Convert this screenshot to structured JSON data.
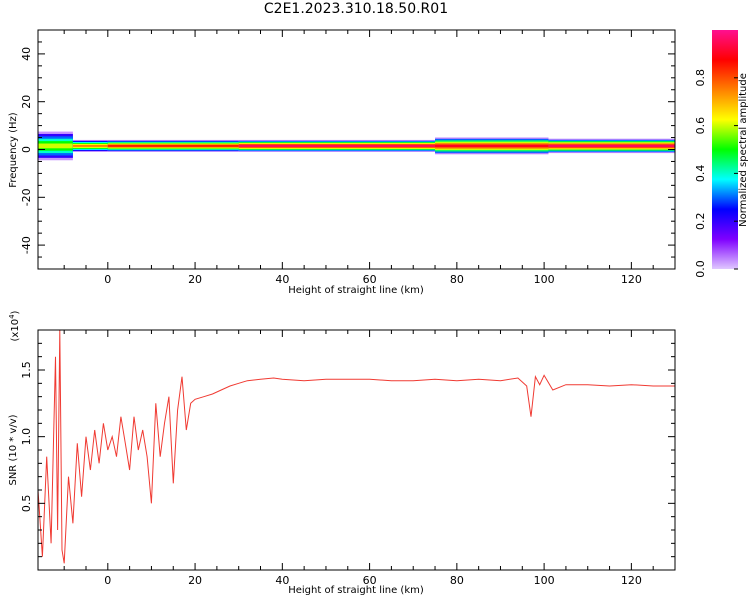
{
  "title": "C2E1.2023.310.18.50.R01",
  "colors": {
    "snr_line": "#f03a32",
    "axis": "#000000",
    "background": "#ffffff"
  },
  "chart_data": [
    {
      "type": "heatmap",
      "xlabel": "Height of straight line (km)",
      "ylabel": "Frequency (Hz)",
      "xlim": [
        -16,
        130
      ],
      "ylim": [
        -50,
        50
      ],
      "xticks": [
        0,
        20,
        40,
        60,
        80,
        100,
        120
      ],
      "yticks": [
        -40,
        -20,
        0,
        20,
        40
      ],
      "colorbar": {
        "label": "Normalized spectral amplitude",
        "range": [
          0,
          1
        ],
        "ticks": [
          "0.0",
          "0.2",
          "0.4",
          "0.6",
          "0.8"
        ],
        "colormap": [
          "#e0c8ff",
          "#7f00ff",
          "#0000ff",
          "#00ffff",
          "#00ff00",
          "#ffff00",
          "#ff8000",
          "#ff0000",
          "#ff1090"
        ]
      },
      "band": {
        "center_freq_hz": 1.5,
        "segments": [
          {
            "x0": -16,
            "x1": -8,
            "halfwidth_hz": 6,
            "peak": 0.6
          },
          {
            "x0": -8,
            "x1": 0,
            "halfwidth_hz": 2.5,
            "peak": 0.75
          },
          {
            "x0": 0,
            "x1": 30,
            "halfwidth_hz": 2.5,
            "peak": 0.85
          },
          {
            "x0": 30,
            "x1": 75,
            "halfwidth_hz": 2.5,
            "peak": 0.95
          },
          {
            "x0": 75,
            "x1": 101,
            "halfwidth_hz": 3.5,
            "peak": 0.9
          },
          {
            "x0": 101,
            "x1": 130,
            "halfwidth_hz": 3,
            "peak": 0.95
          }
        ]
      }
    },
    {
      "type": "line",
      "xlabel": "Height of straight line (km)",
      "ylabel": "SNR (10 * v/v)",
      "y_multiplier": "(x10",
      "y_multiplier_exp": "4",
      "multiplier_close": ")",
      "xlim": [
        -16,
        130
      ],
      "ylim": [
        0,
        1.8
      ],
      "xticks": [
        0,
        20,
        40,
        60,
        80,
        100,
        120
      ],
      "yticks": [
        "0.5",
        "1.0",
        "1.5"
      ],
      "series": [
        {
          "x": [
            -16,
            -15,
            -14,
            -13,
            -12,
            -11.5,
            -11,
            -10.5,
            -10,
            -9,
            -8,
            -7,
            -6,
            -5,
            -4,
            -3,
            -2,
            -1,
            0,
            1,
            2,
            3,
            4,
            5,
            6,
            7,
            8,
            9,
            10,
            11,
            12,
            13,
            14,
            15,
            16,
            17,
            18,
            19,
            20,
            22,
            24,
            26,
            28,
            30,
            32,
            35,
            38,
            40,
            45,
            50,
            55,
            60,
            65,
            70,
            75,
            80,
            85,
            90,
            94,
            96,
            97,
            98,
            99,
            100,
            102,
            105,
            110,
            115,
            120,
            125,
            130
          ],
          "y": [
            0.6,
            0.1,
            0.85,
            0.2,
            1.6,
            0.3,
            1.8,
            0.15,
            0.05,
            0.7,
            0.35,
            0.95,
            0.55,
            1.0,
            0.75,
            1.05,
            0.8,
            1.1,
            0.9,
            1.0,
            0.85,
            1.15,
            0.95,
            0.75,
            1.15,
            0.9,
            1.05,
            0.85,
            0.5,
            1.25,
            0.85,
            1.1,
            1.3,
            0.65,
            1.2,
            1.45,
            1.05,
            1.25,
            1.28,
            1.3,
            1.32,
            1.35,
            1.38,
            1.4,
            1.42,
            1.43,
            1.44,
            1.43,
            1.42,
            1.43,
            1.43,
            1.43,
            1.42,
            1.42,
            1.43,
            1.42,
            1.43,
            1.42,
            1.44,
            1.38,
            1.15,
            1.45,
            1.39,
            1.46,
            1.35,
            1.39,
            1.39,
            1.38,
            1.39,
            1.38,
            1.38
          ]
        }
      ]
    }
  ]
}
